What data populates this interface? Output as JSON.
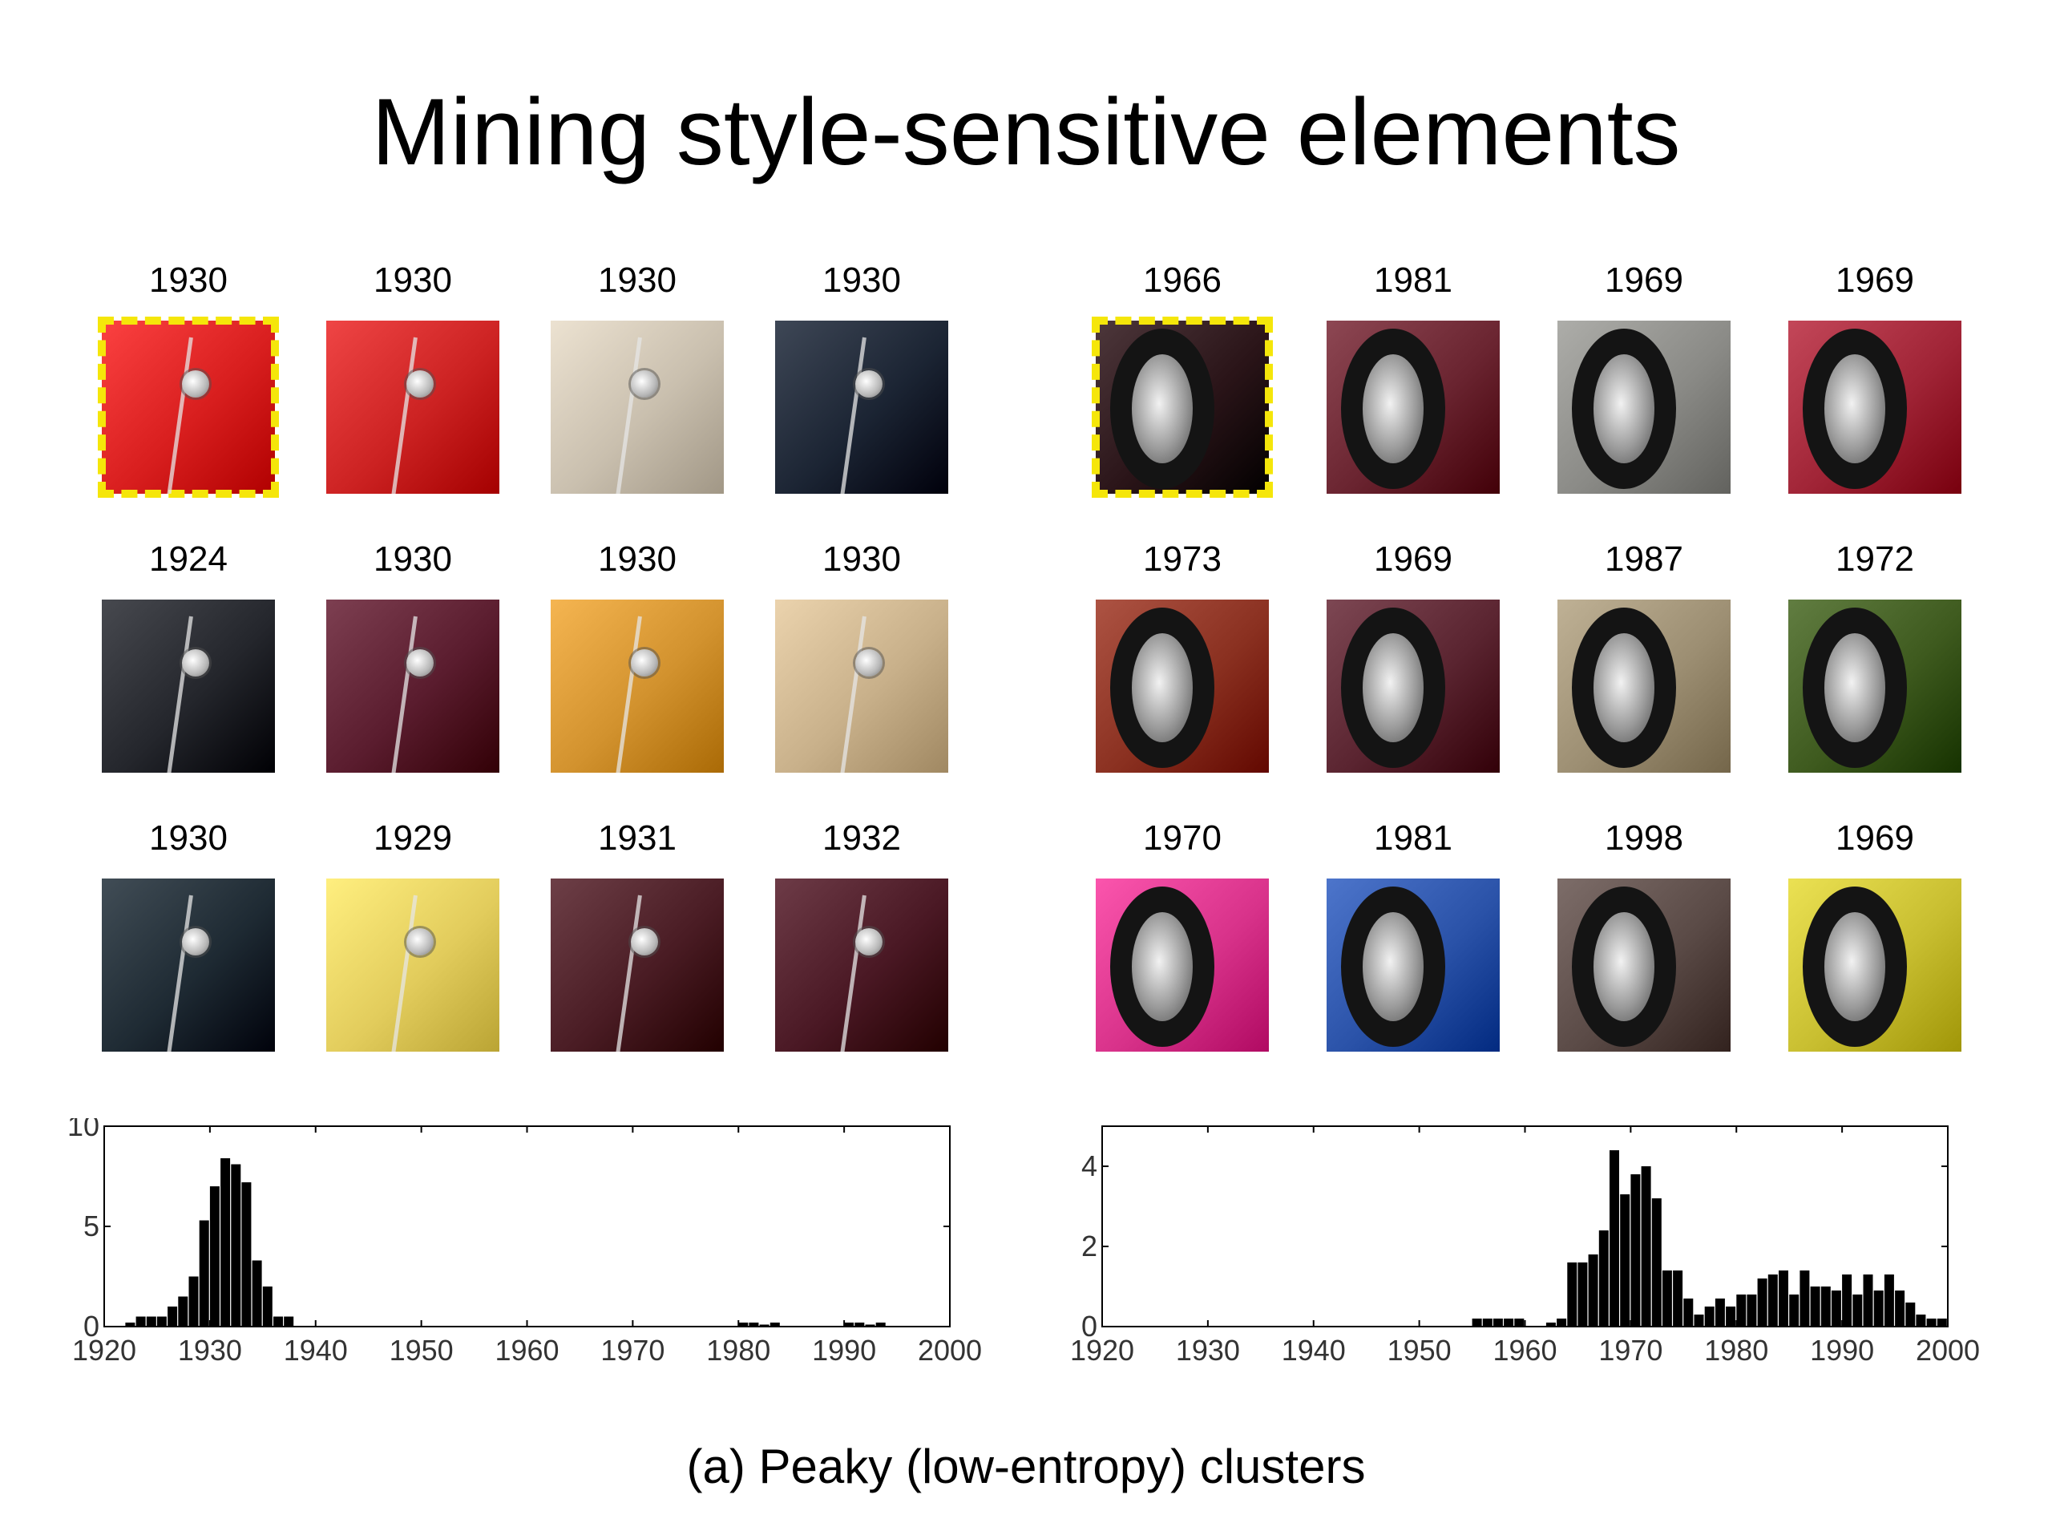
{
  "title": "Mining style-sensitive elements",
  "caption": "(a) Peaky (low-entropy) clusters",
  "clusters": [
    {
      "subject": "headlight",
      "patches": [
        {
          "year": "1930",
          "color": "#d81e1e",
          "selected": true
        },
        {
          "year": "1930",
          "color": "#cc2222",
          "selected": false
        },
        {
          "year": "1930",
          "color": "#c9bfae",
          "selected": false
        },
        {
          "year": "1930",
          "color": "#1b2433",
          "selected": false
        },
        {
          "year": "1924",
          "color": "#24262c",
          "selected": false
        },
        {
          "year": "1930",
          "color": "#5a1c2e",
          "selected": false
        },
        {
          "year": "1930",
          "color": "#d2922e",
          "selected": false
        },
        {
          "year": "1930",
          "color": "#c8b08a",
          "selected": false
        },
        {
          "year": "1930",
          "color": "#1e2a33",
          "selected": false
        },
        {
          "year": "1929",
          "color": "#e2cc5c",
          "selected": false
        },
        {
          "year": "1931",
          "color": "#4a1c24",
          "selected": false
        },
        {
          "year": "1932",
          "color": "#4a1824",
          "selected": false
        }
      ]
    },
    {
      "subject": "wheel",
      "patches": [
        {
          "year": "1966",
          "color": "#2a1418",
          "selected": true
        },
        {
          "year": "1981",
          "color": "#6a2430",
          "selected": false
        },
        {
          "year": "1969",
          "color": "#8a8a86",
          "selected": false
        },
        {
          "year": "1969",
          "color": "#a02436",
          "selected": false
        },
        {
          "year": "1973",
          "color": "#8a3020",
          "selected": false
        },
        {
          "year": "1969",
          "color": "#5a2430",
          "selected": false
        },
        {
          "year": "1987",
          "color": "#9c8e72",
          "selected": false
        },
        {
          "year": "1972",
          "color": "#3e5a1e",
          "selected": false
        },
        {
          "year": "1970",
          "color": "#d8328a",
          "selected": false
        },
        {
          "year": "1981",
          "color": "#2a52a8",
          "selected": false
        },
        {
          "year": "1998",
          "color": "#5a4a46",
          "selected": false
        },
        {
          "year": "1969",
          "color": "#c8be30",
          "selected": false
        }
      ]
    }
  ],
  "chart_data": [
    {
      "type": "bar",
      "title": "",
      "xlabel": "",
      "ylabel": "",
      "xlim": [
        1920,
        2000
      ],
      "ylim": [
        0,
        10
      ],
      "xticks": [
        1920,
        1930,
        1940,
        1950,
        1960,
        1970,
        1980,
        1990,
        2000
      ],
      "yticks": [
        0,
        5,
        10
      ],
      "bin_width": 1,
      "x": [
        1922,
        1923,
        1924,
        1925,
        1926,
        1927,
        1928,
        1929,
        1930,
        1931,
        1932,
        1933,
        1934,
        1935,
        1936,
        1937,
        1980,
        1981,
        1982,
        1983,
        1990,
        1991,
        1992,
        1993
      ],
      "values": [
        0.2,
        0.5,
        0.5,
        0.5,
        1.0,
        1.5,
        2.5,
        5.3,
        7.0,
        8.4,
        8.1,
        7.2,
        3.3,
        2.0,
        0.5,
        0.5,
        0.2,
        0.2,
        0.1,
        0.2,
        0.2,
        0.2,
        0.1,
        0.2
      ]
    },
    {
      "type": "bar",
      "title": "",
      "xlabel": "",
      "ylabel": "",
      "xlim": [
        1920,
        2000
      ],
      "ylim": [
        0,
        5
      ],
      "xticks": [
        1920,
        1930,
        1940,
        1950,
        1960,
        1970,
        1980,
        1990,
        2000
      ],
      "yticks": [
        0,
        2,
        4
      ],
      "bin_width": 1,
      "x": [
        1955,
        1956,
        1957,
        1958,
        1959,
        1962,
        1963,
        1964,
        1965,
        1966,
        1967,
        1968,
        1969,
        1970,
        1971,
        1972,
        1973,
        1974,
        1975,
        1976,
        1977,
        1978,
        1979,
        1980,
        1981,
        1982,
        1983,
        1984,
        1985,
        1986,
        1987,
        1988,
        1989,
        1990,
        1991,
        1992,
        1993,
        1994,
        1995,
        1996,
        1997,
        1998,
        1999
      ],
      "values": [
        0.2,
        0.2,
        0.2,
        0.2,
        0.2,
        0.1,
        0.2,
        1.6,
        1.6,
        1.8,
        2.4,
        4.4,
        3.3,
        3.8,
        4.0,
        3.2,
        1.4,
        1.4,
        0.7,
        0.3,
        0.5,
        0.7,
        0.5,
        0.8,
        0.8,
        1.2,
        1.3,
        1.4,
        0.8,
        1.4,
        1.0,
        1.0,
        0.9,
        1.3,
        0.8,
        1.3,
        0.9,
        1.3,
        0.9,
        0.6,
        0.3,
        0.2,
        0.2
      ]
    }
  ]
}
